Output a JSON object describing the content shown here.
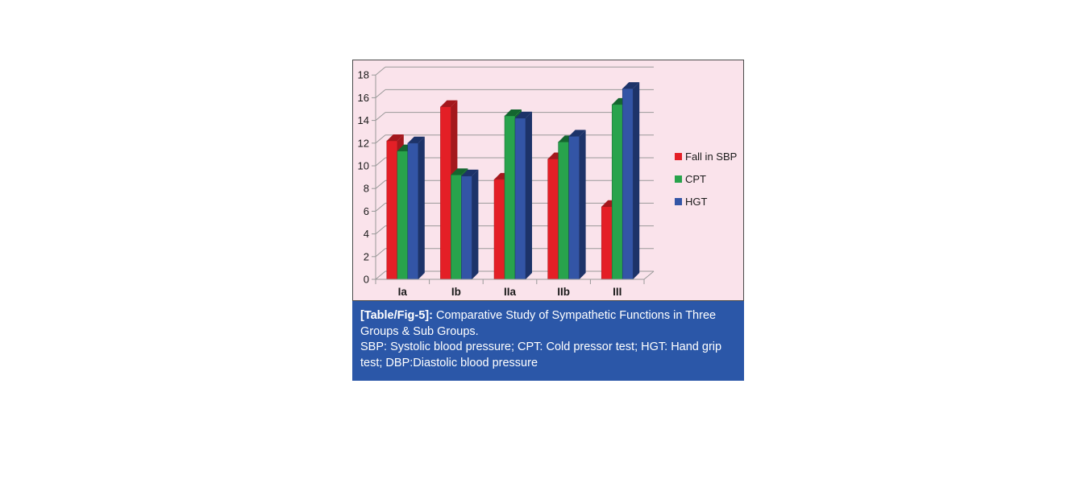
{
  "figure": {
    "caption": {
      "label": "[Table/Fig-5]:",
      "title": " Comparative Study of Sympathetic Functions in Three Groups & Sub Groups.",
      "abbreviations": "SBP: Systolic blood pressure; CPT: Cold pressor test; HGT: Hand grip test; DBP:Diastolic blood pressure",
      "background_color": "#2b57a8",
      "text_color": "#ffffff"
    }
  },
  "chart_data": {
    "type": "bar",
    "style": "3d-bar",
    "title": "",
    "xlabel": "",
    "ylabel": "",
    "categories": [
      "Ia",
      "Ib",
      "IIa",
      "IIb",
      "III"
    ],
    "series": [
      {
        "name": "Fall in SBP",
        "color": "#e41f26",
        "dark_color": "#a4181d",
        "values": [
          12.2,
          15.2,
          8.8,
          10.6,
          6.4
        ]
      },
      {
        "name": "CPT",
        "color": "#28a34c",
        "dark_color": "#14662f",
        "values": [
          11.3,
          9.2,
          14.4,
          12.1,
          15.4
        ]
      },
      {
        "name": "HGT",
        "color": "#3355a6",
        "dark_color": "#1d3369",
        "values": [
          12.0,
          9.1,
          14.2,
          12.6,
          16.8
        ]
      }
    ],
    "ylim": [
      0,
      18
    ],
    "ytick_step": 2,
    "yticks": [
      "0",
      "2",
      "4",
      "6",
      "8",
      "10",
      "12",
      "14",
      "16",
      "18"
    ],
    "grid": true,
    "legend_position": "right",
    "plot_background": "#fae3eb",
    "gridline_color": "#999999",
    "axis_text_color": "#1a1a1a"
  }
}
